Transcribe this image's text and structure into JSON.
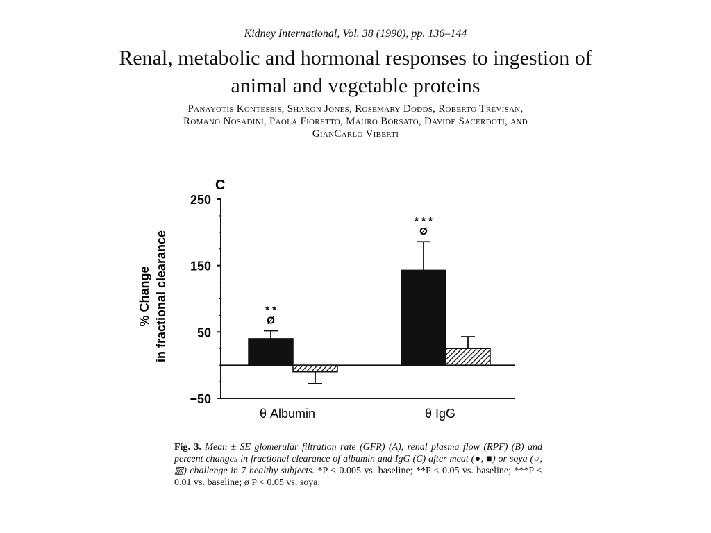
{
  "header": {
    "journal": "Kidney International, Vol. 38 (1990), pp. 136–144",
    "title_line1": "Renal, metabolic and hormonal responses to ingestion of",
    "title_line2": "animal and vegetable proteins",
    "authors_line1": "Panayotis Kontessis, Sharon Jones, Rosemary Dodds, Roberto Trevisan,",
    "authors_line2": "Romano Nosadini, Paola Fioretto, Mauro Borsato, Davide Sacerdoti, and",
    "authors_line3": "GianCarlo Viberti"
  },
  "chart_data": {
    "type": "bar",
    "panel_label": "C",
    "ylabel_line1": "% Change",
    "ylabel_line2": "in fractional clearance",
    "ylim": [
      -50,
      250
    ],
    "yticks": [
      -50,
      50,
      150,
      250
    ],
    "ytick_labels": [
      "−50",
      "50",
      "150",
      "250"
    ],
    "categories": [
      "θ Albumin",
      "θ IgG"
    ],
    "series": [
      {
        "name": "meat",
        "fill": "solid",
        "values": [
          40,
          143
        ],
        "errors": [
          12,
          43
        ],
        "annotations": [
          "* *\nØ",
          "* * *\nØ"
        ]
      },
      {
        "name": "soya",
        "fill": "hatched",
        "values": [
          -10,
          25
        ],
        "errors": [
          18,
          18
        ],
        "annotations": [
          "",
          ""
        ]
      }
    ]
  },
  "caption": {
    "lead": "Fig. 3.",
    "body": "Mean ± SE glomerular filtration rate (GFR) (A), renal plasma flow (RPF) (B) and percent changes in fractional clearance of albumin and IgG (C) after meat (●, ■) or soya (○, ▨) challenge in 7 healthy subjects.",
    "tail": "*P < 0.005 vs. baseline; **P < 0.05 vs. baseline; ***P < 0.01 vs. baseline; ø P < 0.05 vs. soya."
  },
  "colors": {
    "bar_fill": "#111111",
    "hatch": "#111111",
    "axis": "#111111"
  }
}
